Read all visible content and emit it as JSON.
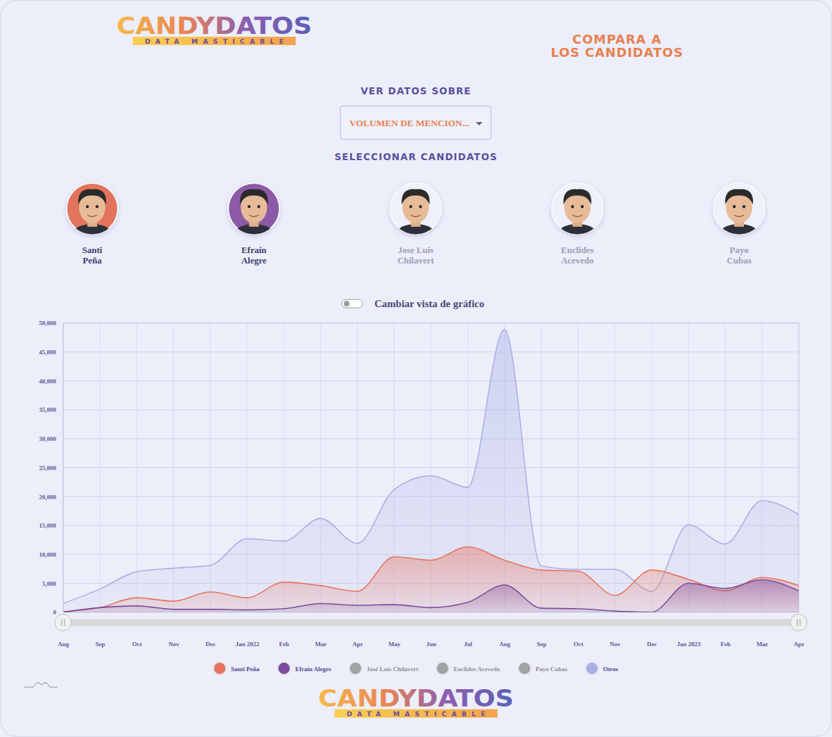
{
  "header": {
    "logo": "CANDYDATOS",
    "logo_tagline": "DATA MASTICABLE",
    "title_lines": [
      "COMPARA A",
      "LOS CANDIDATOS"
    ]
  },
  "controls": {
    "data_label": "VER DATOS SOBRE",
    "data_option": "VOLUMEN DE MENCION...",
    "candidates_label": "SELECCIONAR CANDIDATOS",
    "view_toggle": "Cambiar vista de gráfico"
  },
  "candidates": [
    {
      "name": "Santi Peña",
      "color": "#e2735c"
    },
    {
      "name": "Efraín Alegre",
      "color": "#8c5aa6"
    },
    {
      "name": "Jose Luis Chilavert",
      "color": "#eef0fa"
    },
    {
      "name": "Euclides Acevedo",
      "color": "#eef0fa"
    },
    {
      "name": "Payo Cubas",
      "color": "#eef0fa"
    }
  ],
  "chart_data": {
    "type": "area",
    "categories": [
      "Aug",
      "Sep",
      "Oct",
      "Nov",
      "Dec",
      "Jan 2022",
      "Feb",
      "Mar",
      "Apr",
      "May",
      "Jun",
      "Jul",
      "Aug",
      "Sep",
      "Oct",
      "Nov",
      "Dec",
      "Jan 2023",
      "Feb",
      "Mar",
      "Apr"
    ],
    "series": [
      {
        "name": "Santi Peña",
        "color": "#e8735e",
        "values": [
          100,
          800,
          2500,
          1900,
          3500,
          2500,
          5200,
          4600,
          3600,
          9600,
          9000,
          11300,
          9000,
          7300,
          7100,
          2900,
          7300,
          5700,
          3700,
          6000,
          4600
        ]
      },
      {
        "name": "Efraín Alegre",
        "color": "#7d4b9c",
        "values": [
          0,
          800,
          1100,
          500,
          500,
          400,
          600,
          1500,
          1200,
          1300,
          800,
          1700,
          4700,
          700,
          600,
          200,
          0,
          5000,
          4100,
          5600,
          3700
        ]
      },
      {
        "name": "José Luis Chilavert",
        "color": "#a3a3a3",
        "values": [
          null,
          null,
          null,
          null,
          null,
          null,
          null,
          null,
          null,
          null,
          null,
          null,
          null,
          null,
          null,
          null,
          null,
          null,
          null,
          null,
          null
        ]
      },
      {
        "name": "Euclides Acevedo",
        "color": "#a3a3a3",
        "values": [
          null,
          null,
          null,
          null,
          null,
          null,
          null,
          null,
          null,
          null,
          null,
          null,
          null,
          null,
          null,
          null,
          null,
          null,
          null,
          null,
          null
        ]
      },
      {
        "name": "Payo Cubas",
        "color": "#a3a3a3",
        "values": [
          null,
          null,
          null,
          null,
          null,
          null,
          null,
          null,
          null,
          null,
          null,
          null,
          null,
          null,
          null,
          null,
          null,
          null,
          null,
          null,
          null
        ]
      },
      {
        "name": "Otros",
        "color": "#aab0e6",
        "values": [
          1500,
          4000,
          7000,
          7600,
          8100,
          12700,
          12300,
          16200,
          11900,
          21200,
          23600,
          21600,
          48900,
          8000,
          7400,
          7400,
          3600,
          15100,
          11800,
          19300,
          16900
        ]
      }
    ],
    "ylim": [
      0,
      50000
    ],
    "yticks": [
      0,
      {
        "value": 5000,
        "label": "5,000"
      },
      {
        "value": 10000,
        "label": "10,000"
      },
      {
        "value": 15000,
        "label": "15,000"
      },
      {
        "value": 20000,
        "label": "20,000"
      },
      {
        "value": 25000,
        "label": "25,000"
      },
      {
        "value": 30000,
        "label": "30,000"
      },
      {
        "value": 35000,
        "label": "35,000"
      },
      {
        "value": 40000,
        "label": "40,000"
      },
      {
        "value": 45000,
        "label": "45,000"
      },
      {
        "value": 50000,
        "label": "50,000"
      }
    ],
    "grid": true,
    "stacked": false,
    "legend": "bottom"
  },
  "footer": {
    "logo": "CANDYDATOS",
    "logo_tagline": "DATA MASTICABLE"
  }
}
